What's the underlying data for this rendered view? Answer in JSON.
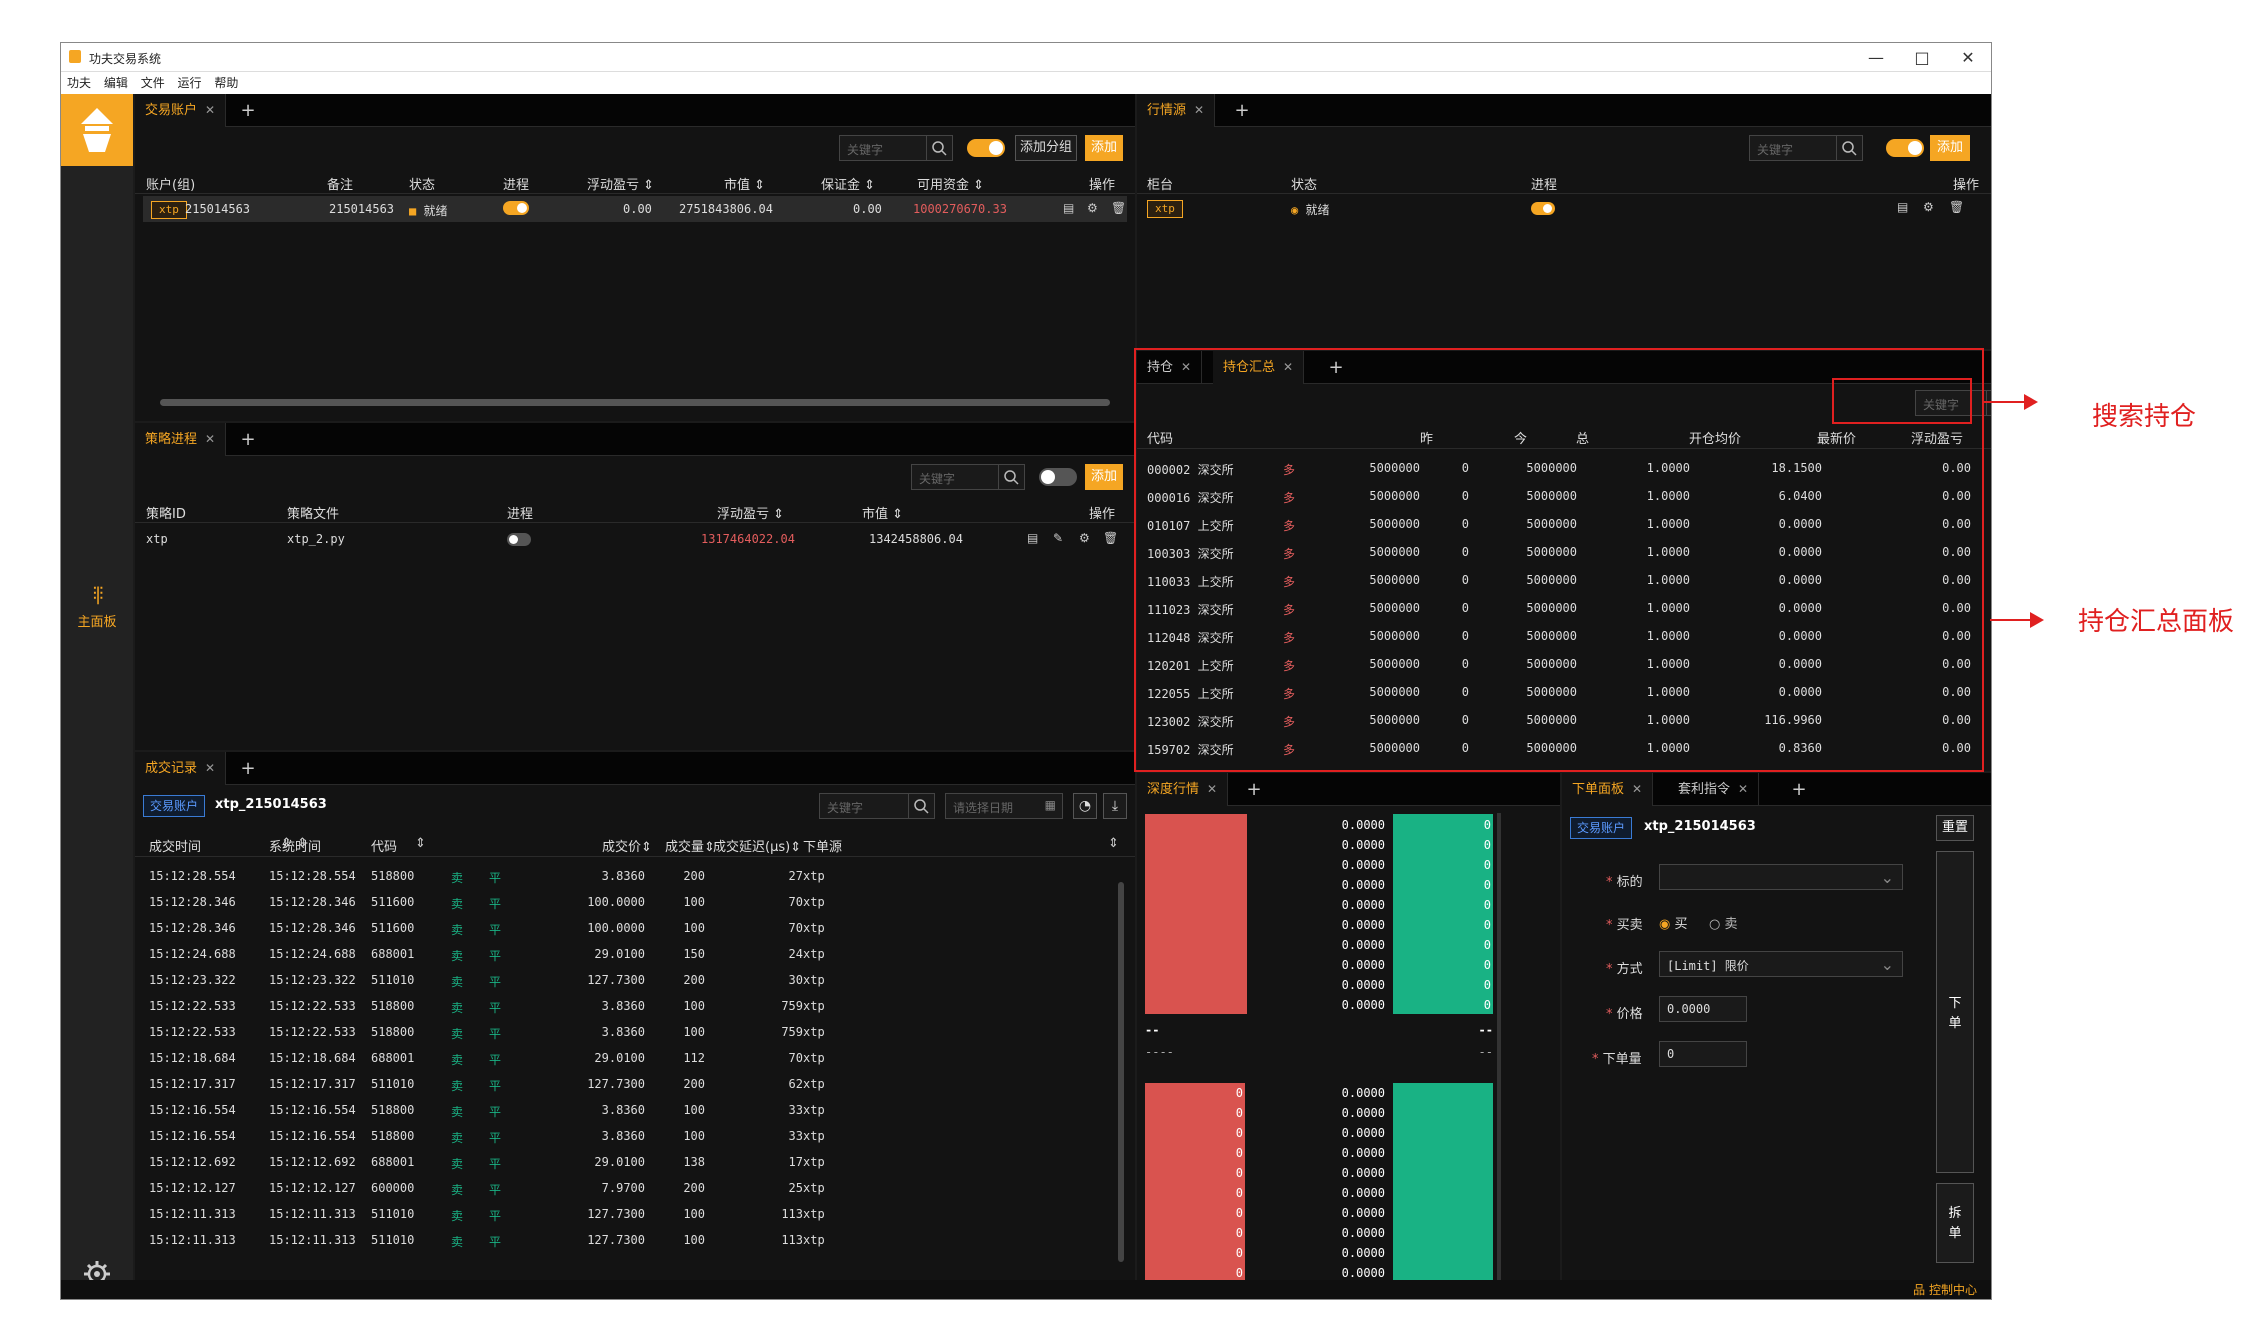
{
  "window": {
    "title": "功夫交易系统",
    "controls": [
      "—",
      "□",
      "✕"
    ]
  },
  "menu": [
    "功夫",
    "编辑",
    "文件",
    "运行",
    "帮助"
  ],
  "sidebar": {
    "main_label": "主面板"
  },
  "status_bar": {
    "text": "品 控制中心"
  },
  "accounts": {
    "tab": "交易账户",
    "search_placeholder": "关键字",
    "add_group": "添加分组",
    "add": "添加",
    "headers": [
      "账户(组)",
      "备注",
      "状态",
      "进程",
      "浮动盈亏 ⇕",
      "市值 ⇕",
      "保证金 ⇕",
      "可用资金 ⇕",
      "操作"
    ],
    "row": {
      "source": "xtp",
      "account": "215014563",
      "note": "215014563",
      "status": "就绪",
      "pnl": "0.00",
      "market_value": "2751843806.04",
      "margin": "0.00",
      "available": "1000270670.33"
    }
  },
  "strategies": {
    "tab": "策略进程",
    "search_placeholder": "关键字",
    "add": "添加",
    "headers": [
      "策略ID",
      "策略文件",
      "进程",
      "浮动盈亏 ⇕",
      "市值 ⇕",
      "操作"
    ],
    "row": {
      "id": "xtp",
      "file": "xtp_2.py",
      "pnl": "1317464022.04",
      "market_value": "1342458806.04"
    }
  },
  "trades": {
    "tab": "成交记录",
    "account_label": "交易账户",
    "account": "xtp_215014563",
    "search_placeholder": "关键字",
    "date_placeholder": "请选择日期",
    "headers": [
      "成交时间",
      "系统时间",
      "代码",
      "成交价⇕",
      "成交量⇕",
      "成交延迟(μs)⇕",
      "下单源"
    ],
    "rows": [
      [
        "15:12:28.554",
        "15:12:28.554",
        "518800",
        "卖",
        "平",
        "3.8360",
        "200",
        "27",
        "xtp"
      ],
      [
        "15:12:28.346",
        "15:12:28.346",
        "511600",
        "卖",
        "平",
        "100.0000",
        "100",
        "70",
        "xtp"
      ],
      [
        "15:12:28.346",
        "15:12:28.346",
        "511600",
        "卖",
        "平",
        "100.0000",
        "100",
        "70",
        "xtp"
      ],
      [
        "15:12:24.688",
        "15:12:24.688",
        "688001",
        "卖",
        "平",
        "29.0100",
        "150",
        "24",
        "xtp"
      ],
      [
        "15:12:23.322",
        "15:12:23.322",
        "511010",
        "卖",
        "平",
        "127.7300",
        "200",
        "30",
        "xtp"
      ],
      [
        "15:12:22.533",
        "15:12:22.533",
        "518800",
        "卖",
        "平",
        "3.8360",
        "100",
        "759",
        "xtp"
      ],
      [
        "15:12:22.533",
        "15:12:22.533",
        "518800",
        "卖",
        "平",
        "3.8360",
        "100",
        "759",
        "xtp"
      ],
      [
        "15:12:18.684",
        "15:12:18.684",
        "688001",
        "卖",
        "平",
        "29.0100",
        "112",
        "70",
        "xtp"
      ],
      [
        "15:12:17.317",
        "15:12:17.317",
        "511010",
        "卖",
        "平",
        "127.7300",
        "200",
        "62",
        "xtp"
      ],
      [
        "15:12:16.554",
        "15:12:16.554",
        "518800",
        "卖",
        "平",
        "3.8360",
        "100",
        "33",
        "xtp"
      ],
      [
        "15:12:16.554",
        "15:12:16.554",
        "518800",
        "卖",
        "平",
        "3.8360",
        "100",
        "33",
        "xtp"
      ],
      [
        "15:12:12.692",
        "15:12:12.692",
        "688001",
        "卖",
        "平",
        "29.0100",
        "138",
        "17",
        "xtp"
      ],
      [
        "15:12:12.127",
        "15:12:12.127",
        "600000",
        "卖",
        "平",
        "7.9700",
        "200",
        "25",
        "xtp"
      ],
      [
        "15:12:11.313",
        "15:12:11.313",
        "511010",
        "卖",
        "平",
        "127.7300",
        "100",
        "113",
        "xtp"
      ],
      [
        "15:12:11.313",
        "15:12:11.313",
        "511010",
        "卖",
        "平",
        "127.7300",
        "100",
        "113",
        "xtp"
      ]
    ]
  },
  "md_sources": {
    "tab": "行情源",
    "search_placeholder": "关键字",
    "add": "添加",
    "headers": [
      "柜台",
      "状态",
      "进程",
      "操作"
    ],
    "row": {
      "source": "xtp",
      "status": "就绪"
    }
  },
  "positions": {
    "tabs": [
      "持仓",
      "持仓汇总"
    ],
    "search_placeholder": "关键字",
    "headers": [
      "代码",
      "昨",
      "今",
      "总",
      "开仓均价",
      "最新价",
      "浮动盈亏"
    ],
    "rows": [
      [
        "000002 深交所",
        "多",
        "5000000",
        "0",
        "5000000",
        "1.0000",
        "18.1500",
        "0.00"
      ],
      [
        "000016 深交所",
        "多",
        "5000000",
        "0",
        "5000000",
        "1.0000",
        "6.0400",
        "0.00"
      ],
      [
        "010107 上交所",
        "多",
        "5000000",
        "0",
        "5000000",
        "1.0000",
        "0.0000",
        "0.00"
      ],
      [
        "100303 深交所",
        "多",
        "5000000",
        "0",
        "5000000",
        "1.0000",
        "0.0000",
        "0.00"
      ],
      [
        "110033 上交所",
        "多",
        "5000000",
        "0",
        "5000000",
        "1.0000",
        "0.0000",
        "0.00"
      ],
      [
        "111023 深交所",
        "多",
        "5000000",
        "0",
        "5000000",
        "1.0000",
        "0.0000",
        "0.00"
      ],
      [
        "112048 深交所",
        "多",
        "5000000",
        "0",
        "5000000",
        "1.0000",
        "0.0000",
        "0.00"
      ],
      [
        "120201 上交所",
        "多",
        "5000000",
        "0",
        "5000000",
        "1.0000",
        "0.0000",
        "0.00"
      ],
      [
        "122055 上交所",
        "多",
        "5000000",
        "0",
        "5000000",
        "1.0000",
        "0.0000",
        "0.00"
      ],
      [
        "123002 深交所",
        "多",
        "5000000",
        "0",
        "5000000",
        "1.0000",
        "116.9960",
        "0.00"
      ],
      [
        "159702 深交所",
        "多",
        "5000000",
        "0",
        "5000000",
        "1.0000",
        "0.8360",
        "0.00"
      ]
    ]
  },
  "depth": {
    "tab": "深度行情",
    "ask_prices": [
      "0.0000",
      "0.0000",
      "0.0000",
      "0.0000",
      "0.0000",
      "0.0000",
      "0.0000",
      "0.0000",
      "0.0000",
      "0.0000"
    ],
    "ask_volumes": [
      "0",
      "0",
      "0",
      "0",
      "0",
      "0",
      "0",
      "0",
      "0",
      "0"
    ],
    "mid_left": "--",
    "mid_right": "--",
    "mid_left2": "----",
    "mid_right2": "--",
    "bid_volumes": [
      "0",
      "0",
      "0",
      "0",
      "0",
      "0",
      "0",
      "0",
      "0",
      "0"
    ],
    "bid_prices": [
      "0.0000",
      "0.0000",
      "0.0000",
      "0.0000",
      "0.0000",
      "0.0000",
      "0.0000",
      "0.0000",
      "0.0000",
      "0.0000"
    ]
  },
  "order_panel": {
    "tabs": [
      "下单面板",
      "套利指令"
    ],
    "account_label": "交易账户",
    "account": "xtp_215014563",
    "reset": "重置",
    "labels": {
      "instrument": "标的",
      "side": "买卖",
      "method": "方式",
      "price": "价格",
      "volume": "下单量"
    },
    "side_buy": "买",
    "side_sell": "卖",
    "method_value": "[Limit] 限价",
    "price_value": "0.0000",
    "volume_value": "0",
    "submit": "下单",
    "split": "拆单"
  },
  "annotations": {
    "search_positions": "搜索持仓",
    "positions_summary_panel": "持仓汇总面板"
  },
  "colors": {
    "accent": "#f5a623",
    "ask": "#d9534f",
    "bid": "#19b284",
    "annotation": "#e02020"
  }
}
